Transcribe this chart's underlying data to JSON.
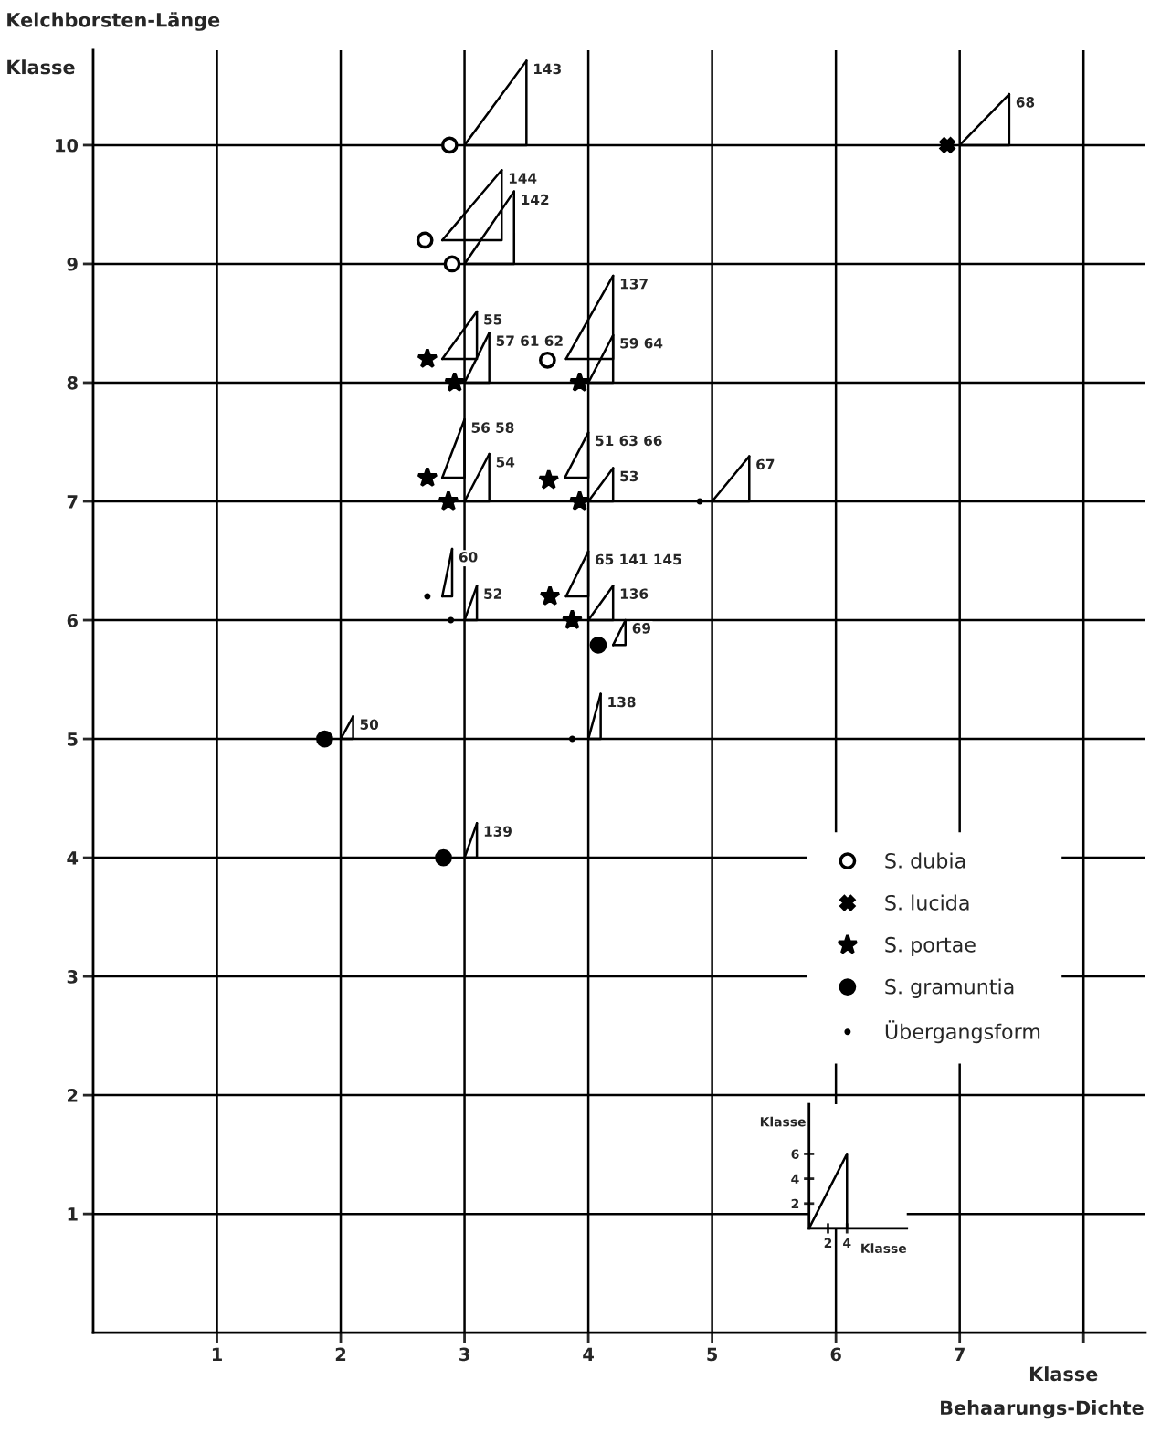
{
  "chart_data": [
    {
      "type": "scatter",
      "xlabel": "Behaarungs-Dichte",
      "ylabel": "Kelchborsten-Länge",
      "xlim": [
        0,
        8.5
      ],
      "ylim": [
        0,
        10.8
      ],
      "xticks": [
        1,
        2,
        3,
        4,
        5,
        6,
        7,
        {
          "value": 8,
          "label": null
        }
      ],
      "yticks": [
        1,
        2,
        3,
        4,
        5,
        6,
        7,
        8,
        9,
        10
      ],
      "grid": true,
      "legend": "right",
      "series": [
        {
          "name": "S. dubia",
          "color": "#ffffff",
          "marker": "circle",
          "x": [
            2.88,
            2.68,
            2.9,
            3.67
          ],
          "values": [
            10.0,
            9.2,
            9.0,
            8.19
          ]
        },
        {
          "name": "S. lucida",
          "color": "#000000",
          "marker": "cross",
          "x": [
            6.9
          ],
          "values": [
            10.0
          ]
        },
        {
          "name": "S. portae",
          "color": "#000000",
          "marker": "star",
          "x": [
            2.7,
            2.92,
            2.7,
            2.87,
            3.68,
            3.93,
            3.93,
            3.69,
            3.87
          ],
          "values": [
            8.2,
            8.0,
            7.2,
            7.0,
            7.18,
            8.0,
            7.0,
            6.2,
            6.0
          ]
        },
        {
          "name": "S. gramuntia",
          "color": "#000000",
          "marker": "circle",
          "x": [
            1.87,
            4.08,
            2.83
          ],
          "values": [
            5.0,
            5.79,
            4.0
          ]
        },
        {
          "name": "Übergangsform",
          "color": "#000000",
          "marker": "dot",
          "x": [
            2.7,
            2.89,
            4.9,
            3.87
          ],
          "values": [
            6.2,
            6.0,
            7.0,
            5.0
          ]
        },
        {
          "type": "line",
          "color": "#000000",
          "x": [
            3.0,
            3.5,
            3.5
          ],
          "values": [
            10.0,
            10.0,
            10.71
          ]
        },
        {
          "type": "line",
          "color": "#000000",
          "x": [
            3.0,
            3.5
          ],
          "values": [
            10.0,
            10.71
          ]
        },
        {
          "type": "line",
          "color": "#000000",
          "x": [
            7.0,
            7.4,
            7.4
          ],
          "values": [
            10.0,
            10.0,
            10.43
          ]
        },
        {
          "type": "line",
          "color": "#000000",
          "x": [
            7.0,
            7.4
          ],
          "values": [
            10.0,
            10.43
          ]
        },
        {
          "type": "line",
          "color": "#000000",
          "x": [
            2.82,
            3.3,
            3.3
          ],
          "values": [
            9.2,
            9.2,
            9.79
          ]
        },
        {
          "type": "line",
          "color": "#000000",
          "x": [
            2.82,
            3.3
          ],
          "values": [
            9.2,
            9.79
          ]
        },
        {
          "type": "line",
          "color": "#000000",
          "x": [
            3.0,
            3.4,
            3.4
          ],
          "values": [
            9.0,
            9.0,
            9.61
          ]
        },
        {
          "type": "line",
          "color": "#000000",
          "x": [
            3.0,
            3.4
          ],
          "values": [
            9.0,
            9.61
          ]
        },
        {
          "type": "line",
          "color": "#000000",
          "x": [
            2.82,
            3.1,
            3.1
          ],
          "values": [
            8.2,
            8.2,
            8.6
          ]
        },
        {
          "type": "line",
          "color": "#000000",
          "x": [
            2.82,
            3.1
          ],
          "values": [
            8.2,
            8.6
          ]
        },
        {
          "type": "line",
          "color": "#000000",
          "x": [
            3.0,
            3.2,
            3.2
          ],
          "values": [
            8.0,
            8.0,
            8.42
          ]
        },
        {
          "type": "line",
          "color": "#000000",
          "x": [
            3.0,
            3.2
          ],
          "values": [
            8.0,
            8.42
          ]
        },
        {
          "type": "line",
          "color": "#000000",
          "x": [
            3.82,
            4.2,
            4.2
          ],
          "values": [
            8.2,
            8.2,
            8.9
          ]
        },
        {
          "type": "line",
          "color": "#000000",
          "x": [
            3.82,
            4.2
          ],
          "values": [
            8.2,
            8.9
          ]
        },
        {
          "type": "line",
          "color": "#000000",
          "x": [
            4.0,
            4.2,
            4.2
          ],
          "values": [
            8.0,
            8.0,
            8.4
          ]
        },
        {
          "type": "line",
          "color": "#000000",
          "x": [
            4.0,
            4.2
          ],
          "values": [
            8.0,
            8.4
          ]
        },
        {
          "type": "line",
          "color": "#000000",
          "x": [
            2.82,
            3.0,
            3.0
          ],
          "values": [
            7.2,
            7.2,
            7.69
          ]
        },
        {
          "type": "line",
          "color": "#000000",
          "x": [
            2.82,
            3.0
          ],
          "values": [
            7.2,
            7.69
          ]
        },
        {
          "type": "line",
          "color": "#000000",
          "x": [
            3.0,
            3.2,
            3.2
          ],
          "values": [
            7.0,
            7.0,
            7.4
          ]
        },
        {
          "type": "line",
          "color": "#000000",
          "x": [
            3.0,
            3.2
          ],
          "values": [
            7.0,
            7.4
          ]
        },
        {
          "type": "line",
          "color": "#000000",
          "x": [
            3.81,
            4.0,
            4.0
          ],
          "values": [
            7.2,
            7.2,
            7.58
          ]
        },
        {
          "type": "line",
          "color": "#000000",
          "x": [
            3.81,
            4.0
          ],
          "values": [
            7.2,
            7.58
          ]
        },
        {
          "type": "line",
          "color": "#000000",
          "x": [
            4.0,
            4.2,
            4.2
          ],
          "values": [
            7.0,
            7.0,
            7.28
          ]
        },
        {
          "type": "line",
          "color": "#000000",
          "x": [
            4.0,
            4.2
          ],
          "values": [
            7.0,
            7.28
          ]
        },
        {
          "type": "line",
          "color": "#000000",
          "x": [
            5.0,
            5.3,
            5.3
          ],
          "values": [
            7.0,
            7.0,
            7.38
          ]
        },
        {
          "type": "line",
          "color": "#000000",
          "x": [
            5.0,
            5.3
          ],
          "values": [
            7.0,
            7.38
          ]
        },
        {
          "type": "line",
          "color": "#000000",
          "x": [
            2.82,
            2.9,
            2.9
          ],
          "values": [
            6.2,
            6.2,
            6.6
          ]
        },
        {
          "type": "line",
          "color": "#000000",
          "x": [
            2.82,
            2.9
          ],
          "values": [
            6.2,
            6.6
          ]
        },
        {
          "type": "line",
          "color": "#000000",
          "x": [
            3.0,
            3.1,
            3.1
          ],
          "values": [
            6.0,
            6.0,
            6.29
          ]
        },
        {
          "type": "line",
          "color": "#000000",
          "x": [
            3.0,
            3.1
          ],
          "values": [
            6.0,
            6.29
          ]
        },
        {
          "type": "line",
          "color": "#000000",
          "x": [
            3.82,
            4.0,
            4.0
          ],
          "values": [
            6.2,
            6.2,
            6.58
          ]
        },
        {
          "type": "line",
          "color": "#000000",
          "x": [
            3.82,
            4.0
          ],
          "values": [
            6.2,
            6.58
          ]
        },
        {
          "type": "line",
          "color": "#000000",
          "x": [
            4.0,
            4.2,
            4.2
          ],
          "values": [
            6.0,
            6.0,
            6.29
          ]
        },
        {
          "type": "line",
          "color": "#000000",
          "x": [
            4.0,
            4.2
          ],
          "values": [
            6.0,
            6.29
          ]
        },
        {
          "type": "line",
          "color": "#000000",
          "x": [
            4.2,
            4.3,
            4.3
          ],
          "values": [
            5.79,
            5.79,
            6.0
          ]
        },
        {
          "type": "line",
          "color": "#000000",
          "x": [
            4.2,
            4.3
          ],
          "values": [
            5.79,
            6.0
          ]
        },
        {
          "type": "line",
          "color": "#000000",
          "x": [
            4.0,
            4.1,
            4.1
          ],
          "values": [
            5.0,
            5.0,
            5.38
          ]
        },
        {
          "type": "line",
          "color": "#000000",
          "x": [
            4.0,
            4.1
          ],
          "values": [
            5.0,
            5.38
          ]
        },
        {
          "type": "line",
          "color": "#000000",
          "x": [
            2.0,
            2.1,
            2.1
          ],
          "values": [
            5.0,
            5.0,
            5.19
          ]
        },
        {
          "type": "line",
          "color": "#000000",
          "x": [
            2.0,
            2.1
          ],
          "values": [
            5.0,
            5.19
          ]
        },
        {
          "type": "line",
          "color": "#000000",
          "x": [
            3.0,
            3.1,
            3.1
          ],
          "values": [
            4.0,
            4.0,
            4.29
          ]
        },
        {
          "type": "line",
          "color": "#000000",
          "x": [
            3.0,
            3.1
          ],
          "values": [
            4.0,
            4.29
          ]
        }
      ],
      "annotations": [
        "Klasse",
        "Klasse",
        {
          "text": "143",
          "x": 3.5,
          "y": 10.71
        },
        {
          "text": "68",
          "x": 7.4,
          "y": 10.43
        },
        {
          "text": "144",
          "x": 3.3,
          "y": 9.79
        },
        {
          "text": "142",
          "x": 3.4,
          "y": 9.61
        },
        {
          "text": "55",
          "x": 3.1,
          "y": 8.6
        },
        {
          "text": "57 61 62",
          "x": 3.2,
          "y": 8.42
        },
        {
          "text": "137",
          "x": 4.2,
          "y": 8.9
        },
        {
          "text": "59 64",
          "x": 4.2,
          "y": 8.4
        },
        {
          "text": "56 58",
          "x": 3.0,
          "y": 7.69
        },
        {
          "text": "54",
          "x": 3.2,
          "y": 7.4
        },
        {
          "text": "51 63 66",
          "x": 4.0,
          "y": 7.58
        },
        {
          "text": "53",
          "x": 4.2,
          "y": 7.28
        },
        {
          "text": "67",
          "x": 5.3,
          "y": 7.38
        },
        {
          "text": "60",
          "x": 2.9,
          "y": 6.6
        },
        {
          "text": "52",
          "x": 3.1,
          "y": 6.29
        },
        {
          "text": "65 141 145",
          "x": 4.0,
          "y": 6.58
        },
        {
          "text": "136",
          "x": 4.2,
          "y": 6.29
        },
        {
          "text": "69",
          "x": 4.3,
          "y": 6.0
        },
        {
          "text": "138",
          "x": 4.1,
          "y": 5.38
        },
        {
          "text": "50",
          "x": 2.1,
          "y": 5.19
        },
        {
          "text": "139",
          "x": 3.1,
          "y": 4.29
        }
      ]
    },
    {
      "type": "line",
      "xlabel": "Klasse",
      "ylabel": "Klasse",
      "xlim": [
        0,
        10.3
      ],
      "ylim": [
        0,
        10.0
      ],
      "xticks": [
        2,
        4
      ],
      "yticks": [
        2,
        4,
        6
      ],
      "series": [
        {
          "color": "#000000",
          "x": [
            0,
            4,
            4
          ],
          "values": [
            0,
            0,
            6
          ]
        },
        {
          "color": "#000000",
          "x": [
            0,
            4
          ],
          "values": [
            0,
            6
          ]
        }
      ]
    }
  ]
}
